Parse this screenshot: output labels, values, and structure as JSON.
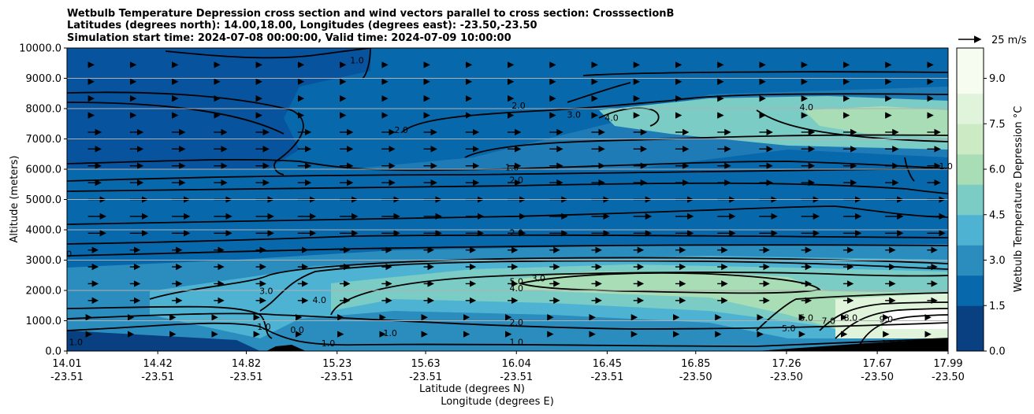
{
  "chart_data": {
    "type": "heatmap",
    "title": [
      "Wetbulb Temperature Depression cross section and wind vectors parallel to cross section: CrosssectionB",
      "Latitudes (degrees north): 14.00,18.00, Longitudes (degrees east): -23.50,-23.50",
      "Simulation start time: 2024-07-08 00:00:00, Valid time: 2024-07-09 10:00:00"
    ],
    "xlabel": "Latitude (degrees N)",
    "xlabel2": "Longitude (degrees E)",
    "ylabel": "Altitude (meters)",
    "ylim": [
      0,
      10000
    ],
    "yticks": [
      "0.0",
      "1000.0",
      "2000.0",
      "3000.0",
      "4000.0",
      "5000.0",
      "6000.0",
      "7000.0",
      "8000.0",
      "9000.0",
      "10000.0"
    ],
    "xticks": [
      {
        "lat": "14.01",
        "lon": "-23.51"
      },
      {
        "lat": "14.42",
        "lon": "-23.51"
      },
      {
        "lat": "14.82",
        "lon": "-23.51"
      },
      {
        "lat": "15.23",
        "lon": "-23.51"
      },
      {
        "lat": "15.63",
        "lon": "-23.51"
      },
      {
        "lat": "16.04",
        "lon": "-23.51"
      },
      {
        "lat": "16.45",
        "lon": "-23.51"
      },
      {
        "lat": "16.85",
        "lon": "-23.50"
      },
      {
        "lat": "17.26",
        "lon": "-23.50"
      },
      {
        "lat": "17.67",
        "lon": "-23.50"
      },
      {
        "lat": "17.99",
        "lon": "-23.50"
      }
    ],
    "colorbar": {
      "label": "Wetbulb Temperature Depression °C",
      "ticks": [
        "0.0",
        "1.5",
        "3.0",
        "4.5",
        "6.0",
        "7.5",
        "9.0"
      ],
      "range": [
        0,
        10
      ],
      "colors": [
        "#084081",
        "#0868ac",
        "#2b8cbe",
        "#4eb3d3",
        "#7bccc4",
        "#a8ddb5",
        "#ccebc5",
        "#e0f3db",
        "#f7fcf0"
      ]
    },
    "quiver_key": "25 m/s",
    "grid": "horizontal",
    "contour_labels": [
      {
        "text": "1.0",
        "x": 14.05,
        "y": 200
      },
      {
        "text": "0.0",
        "x": 15.05,
        "y": 600
      },
      {
        "text": "1.0",
        "x": 14.9,
        "y": 700
      },
      {
        "text": "1.0",
        "x": 15.19,
        "y": 150
      },
      {
        "text": "1.0",
        "x": 15.47,
        "y": 500
      },
      {
        "text": "3.0",
        "x": 14.91,
        "y": 1880
      },
      {
        "text": "4.0",
        "x": 15.15,
        "y": 1580
      },
      {
        "text": "2.0",
        "x": 16.04,
        "y": 850
      },
      {
        "text": "1.0",
        "x": 16.04,
        "y": 200
      },
      {
        "text": "5.0",
        "x": 16.04,
        "y": 2200
      },
      {
        "text": "4.0",
        "x": 16.04,
        "y": 1970
      },
      {
        "text": "3.0",
        "x": 16.14,
        "y": 2300
      },
      {
        "text": "2.0",
        "x": 16.04,
        "y": 3810
      },
      {
        "text": "1.0",
        "x": 16.02,
        "y": 5960
      },
      {
        "text": "2.0",
        "x": 16.04,
        "y": 5540
      },
      {
        "text": "2.0",
        "x": 15.52,
        "y": 7200
      },
      {
        "text": "2.0",
        "x": 16.05,
        "y": 8000
      },
      {
        "text": "3.0",
        "x": 16.3,
        "y": 7700
      },
      {
        "text": "4.0",
        "x": 16.47,
        "y": 7600
      },
      {
        "text": "4.0",
        "x": 17.35,
        "y": 7950
      },
      {
        "text": "1.0",
        "x": 17.98,
        "y": 6000
      },
      {
        "text": "1.0",
        "x": 15.32,
        "y": 9500
      },
      {
        "text": "5.0",
        "x": 17.27,
        "y": 650
      },
      {
        "text": "5.0",
        "x": 17.35,
        "y": 1000
      },
      {
        "text": "7.0",
        "x": 17.45,
        "y": 900
      },
      {
        "text": "8.0",
        "x": 17.55,
        "y": 1000
      },
      {
        "text": "9.0",
        "x": 17.71,
        "y": 950
      },
      {
        "text": "1.0",
        "x": 17.72,
        "y": 150
      },
      {
        "text": "0",
        "x": 14.02,
        "y": 3100
      }
    ],
    "contour_values": [
      "0.0",
      "1.0",
      "2.0",
      "3.0",
      "4.0",
      "5.0",
      "7.0",
      "8.0",
      "9.0"
    ]
  }
}
